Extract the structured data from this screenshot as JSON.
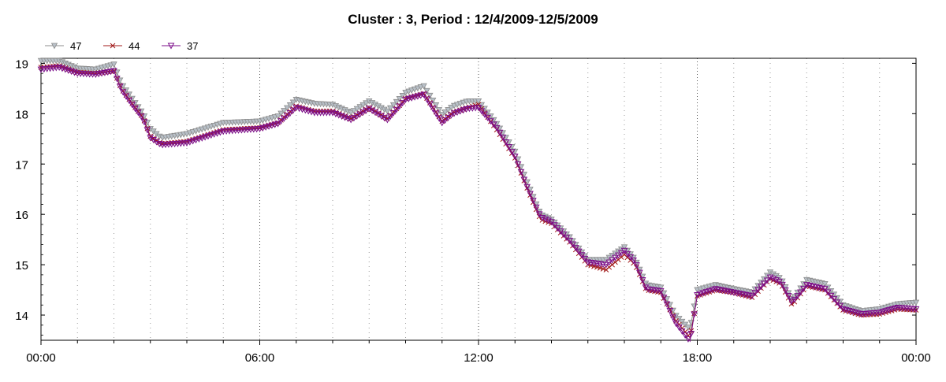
{
  "chart_data": {
    "type": "line",
    "title": "Cluster : 3, Period : 12/4/2009-12/5/2009",
    "xlabel": "",
    "ylabel": "",
    "x_ticks": [
      "00:00",
      "06:00",
      "12:00",
      "18:00",
      "00:00"
    ],
    "x_range_hours": [
      0,
      24
    ],
    "y_ticks": [
      14,
      15,
      16,
      17,
      18,
      19
    ],
    "ylim": [
      13.5,
      19.1
    ],
    "grid": "dotted vertical",
    "legend_position": "top-left",
    "series": [
      {
        "name": "47",
        "color": "#8c8c8c",
        "marker": "triangle-down",
        "x": [
          0,
          0.5,
          1,
          1.5,
          2,
          2.2,
          2.5,
          2.8,
          3,
          3.3,
          4,
          5,
          6,
          6.5,
          7,
          7.5,
          8,
          8.5,
          9,
          9.5,
          10,
          10.5,
          11,
          11.3,
          11.7,
          12,
          12.5,
          13,
          13.3,
          13.7,
          14,
          14.5,
          15,
          15.5,
          16,
          16.3,
          16.6,
          17,
          17.4,
          17.8,
          18,
          18.5,
          19,
          19.5,
          20,
          20.3,
          20.6,
          21,
          21.5,
          22,
          22.5,
          23,
          23.5,
          24
        ],
        "y": [
          19.05,
          19.05,
          18.9,
          18.88,
          18.98,
          18.6,
          18.3,
          18.0,
          17.7,
          17.52,
          17.6,
          17.82,
          17.85,
          17.95,
          18.28,
          18.2,
          18.18,
          18.02,
          18.25,
          18.05,
          18.42,
          18.55,
          17.98,
          18.15,
          18.25,
          18.25,
          17.8,
          17.25,
          16.7,
          16.0,
          15.9,
          15.55,
          15.1,
          15.1,
          15.35,
          15.1,
          14.6,
          14.55,
          14.0,
          13.72,
          14.5,
          14.6,
          14.52,
          14.45,
          14.85,
          14.72,
          14.3,
          14.7,
          14.62,
          14.2,
          14.08,
          14.12,
          14.22,
          14.25
        ]
      },
      {
        "name": "44",
        "color": "#a01818",
        "marker": "x",
        "x": [
          0,
          0.5,
          1,
          1.5,
          2,
          2.2,
          2.5,
          2.8,
          3,
          3.3,
          4,
          5,
          6,
          6.5,
          7,
          7.5,
          8,
          8.5,
          9,
          9.5,
          10,
          10.5,
          11,
          11.3,
          11.7,
          12,
          12.5,
          13,
          13.3,
          13.7,
          14,
          14.5,
          15,
          15.5,
          16,
          16.3,
          16.6,
          17,
          17.4,
          17.8,
          18,
          18.5,
          19,
          19.5,
          20,
          20.3,
          20.6,
          21,
          21.5,
          22,
          22.5,
          23,
          23.5,
          24
        ],
        "y": [
          18.92,
          18.95,
          18.82,
          18.8,
          18.85,
          18.5,
          18.2,
          17.92,
          17.55,
          17.4,
          17.45,
          17.68,
          17.72,
          17.82,
          18.15,
          18.05,
          18.05,
          17.9,
          18.12,
          17.9,
          18.3,
          18.4,
          17.85,
          18.02,
          18.12,
          18.18,
          17.68,
          17.12,
          16.58,
          15.9,
          15.82,
          15.45,
          15.0,
          14.9,
          15.2,
          15.0,
          14.5,
          14.45,
          13.9,
          13.55,
          14.38,
          14.5,
          14.45,
          14.35,
          14.72,
          14.62,
          14.2,
          14.58,
          14.5,
          14.1,
          14.0,
          14.02,
          14.12,
          14.1
        ]
      },
      {
        "name": "37",
        "color": "#7b0f8a",
        "marker": "triangle-down-open",
        "x": [
          0,
          0.5,
          1,
          1.5,
          2,
          2.2,
          2.5,
          2.8,
          3,
          3.3,
          4,
          5,
          6,
          6.5,
          7,
          7.5,
          8,
          8.5,
          9,
          9.5,
          10,
          10.5,
          11,
          11.3,
          11.7,
          12,
          12.5,
          13,
          13.3,
          13.7,
          14,
          14.5,
          15,
          15.5,
          16,
          16.3,
          16.6,
          17,
          17.4,
          17.8,
          18,
          18.5,
          19,
          19.5,
          20,
          20.3,
          20.6,
          21,
          21.5,
          22,
          22.5,
          23,
          23.5,
          24
        ],
        "y": [
          18.88,
          18.92,
          18.8,
          18.78,
          18.85,
          18.48,
          18.18,
          17.9,
          17.52,
          17.38,
          17.42,
          17.65,
          17.7,
          17.8,
          18.12,
          18.02,
          18.02,
          17.88,
          18.1,
          17.88,
          18.28,
          18.38,
          17.82,
          18.0,
          18.1,
          18.12,
          17.72,
          17.15,
          16.6,
          15.95,
          15.85,
          15.48,
          15.05,
          15.0,
          15.28,
          15.05,
          14.52,
          14.48,
          13.85,
          13.48,
          14.4,
          14.52,
          14.45,
          14.38,
          14.75,
          14.65,
          14.25,
          14.6,
          14.52,
          14.12,
          14.02,
          14.05,
          14.15,
          14.12
        ]
      }
    ]
  }
}
